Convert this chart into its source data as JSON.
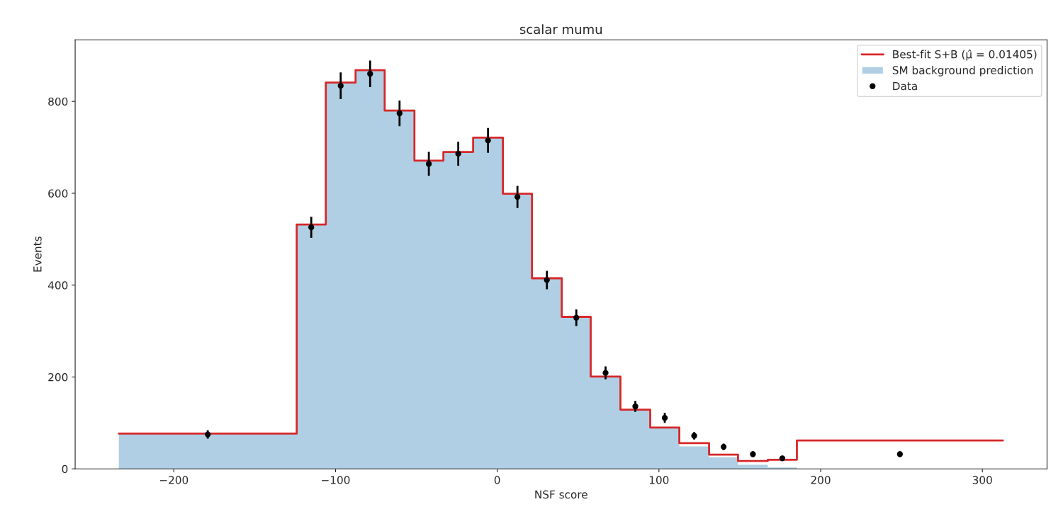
{
  "chart_data": {
    "type": "histogram",
    "title": "scalar mumu",
    "xlabel": "NSF score",
    "ylabel": "Events",
    "bins": [
      -234,
      -124,
      -106,
      -87.6,
      -69.6,
      -51.2,
      -33.3,
      -14.9,
      3.5,
      21.5,
      39.9,
      57.8,
      76.2,
      94.6,
      112.6,
      131,
      148.9,
      167.3,
      185.3,
      312.7
    ],
    "series": [
      {
        "type": "step",
        "name": "Best-fit S+B (μ̂ = 0.01405)",
        "color": "#d62728",
        "x": [
          -234,
          -124,
          -106,
          -87.6,
          -69.6,
          -51.2,
          -33.3,
          -14.9,
          3.5,
          21.5,
          39.9,
          57.8,
          76.2,
          94.6,
          112.6,
          131,
          148.9,
          167.3,
          185.3,
          312.7
        ],
        "values": [
          77,
          532,
          841,
          868,
          780,
          671,
          690,
          721,
          599,
          415,
          331,
          201,
          129,
          90,
          56,
          31,
          17,
          20,
          62,
          62
        ]
      },
      {
        "type": "histogram",
        "name": "SM background prediction",
        "color": "#b0cfe4",
        "values": [
          77,
          532,
          841,
          868,
          780,
          671,
          690,
          721,
          599,
          415,
          331,
          201,
          129,
          90,
          49,
          25,
          9,
          3,
          0
        ]
      },
      {
        "type": "scatter",
        "name": "Data",
        "color": "#000000",
        "marker": "circle",
        "x": [
          -179,
          -115,
          -96.8,
          -78.6,
          -60.4,
          -42.3,
          -24.1,
          -5.7,
          12.5,
          30.7,
          48.9,
          67,
          85.4,
          103.6,
          121.8,
          140,
          158.1,
          176.3,
          249
        ],
        "values": [
          75,
          526,
          834,
          860,
          774,
          664,
          686,
          715,
          592,
          411,
          329,
          209,
          136,
          111,
          72,
          48,
          32,
          23,
          32
        ],
        "errors": [
          9,
          23,
          29,
          29,
          28,
          26,
          26,
          27,
          24,
          20,
          18,
          14,
          12,
          11,
          8,
          7,
          6,
          5,
          6
        ]
      }
    ],
    "xlim": [
      -261,
      340
    ],
    "ylim": [
      0,
      934
    ],
    "xticks": [
      {
        "value": -200,
        "label": "−200"
      },
      {
        "value": -100,
        "label": "−100"
      },
      0,
      100,
      200,
      300
    ],
    "yticks": [
      0,
      200,
      400,
      600,
      800
    ],
    "grid": false,
    "legend": "top right"
  }
}
